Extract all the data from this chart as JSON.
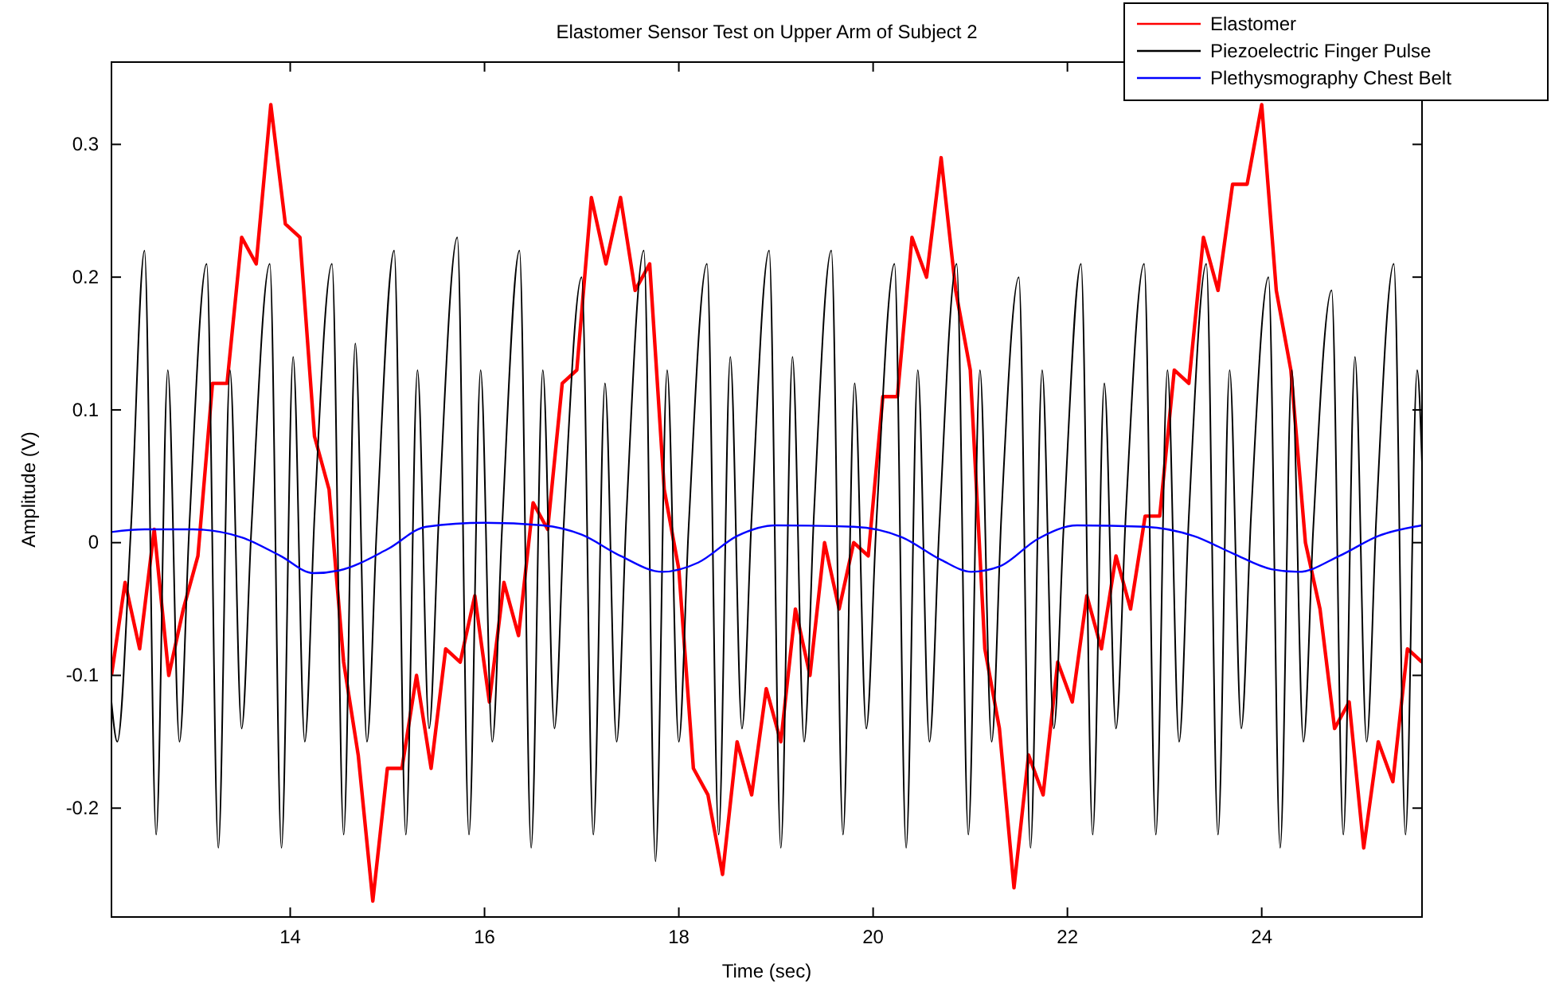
{
  "chart_data": {
    "type": "line",
    "title": "Elastomer Sensor Test on Upper Arm of Subject 2",
    "xlabel": "Time (sec)",
    "ylabel": "Amplitude (V)",
    "xlim": [
      12.16,
      25.65
    ],
    "xticks": [
      14,
      16,
      18,
      20,
      22,
      24
    ],
    "ylim": [
      -0.282,
      0.362
    ],
    "yticks": [
      -0.2,
      -0.1,
      0,
      0.1,
      0.2,
      0.3
    ],
    "grid": false,
    "legend": "top right",
    "marker": "none",
    "line_style": "solid",
    "series": [
      {
        "name": "Elastomer",
        "color": "#ff0000",
        "x": [
          12.16,
          12.3,
          12.45,
          12.6,
          12.75,
          12.9,
          13.05,
          13.2,
          13.35,
          13.5,
          13.65,
          13.8,
          13.95,
          14.1,
          14.25,
          14.4,
          14.55,
          14.7,
          14.85,
          15.0,
          15.15,
          15.3,
          15.45,
          15.6,
          15.75,
          15.9,
          16.05,
          16.2,
          16.35,
          16.5,
          16.65,
          16.8,
          16.95,
          17.1,
          17.25,
          17.4,
          17.55,
          17.7,
          17.85,
          18.0,
          18.15,
          18.3,
          18.45,
          18.6,
          18.75,
          18.9,
          19.05,
          19.2,
          19.35,
          19.5,
          19.65,
          19.8,
          19.95,
          20.1,
          20.25,
          20.4,
          20.55,
          20.7,
          20.85,
          21.0,
          21.15,
          21.3,
          21.45,
          21.6,
          21.75,
          21.9,
          22.05,
          22.2,
          22.35,
          22.5,
          22.65,
          22.8,
          22.95,
          23.1,
          23.25,
          23.4,
          23.55,
          23.7,
          23.85,
          24.0,
          24.15,
          24.3,
          24.45,
          24.6,
          24.75,
          24.9,
          25.05,
          25.2,
          25.35,
          25.5,
          25.65
        ],
        "values": [
          -0.1,
          -0.03,
          -0.08,
          0.01,
          -0.1,
          -0.05,
          -0.01,
          0.12,
          0.12,
          0.23,
          0.21,
          0.33,
          0.24,
          0.23,
          0.08,
          0.04,
          -0.09,
          -0.16,
          -0.27,
          -0.17,
          -0.17,
          -0.1,
          -0.17,
          -0.08,
          -0.09,
          -0.04,
          -0.12,
          -0.03,
          -0.07,
          0.03,
          0.01,
          0.12,
          0.13,
          0.26,
          0.21,
          0.26,
          0.19,
          0.21,
          0.04,
          -0.02,
          -0.17,
          -0.19,
          -0.25,
          -0.15,
          -0.19,
          -0.11,
          -0.15,
          -0.05,
          -0.1,
          0.0,
          -0.05,
          0.0,
          -0.01,
          0.11,
          0.11,
          0.23,
          0.2,
          0.29,
          0.19,
          0.13,
          -0.08,
          -0.14,
          -0.26,
          -0.16,
          -0.19,
          -0.09,
          -0.12,
          -0.04,
          -0.08,
          -0.01,
          -0.05,
          0.02,
          0.02,
          0.13,
          0.12,
          0.23,
          0.19,
          0.27,
          0.27,
          0.33,
          0.19,
          0.13,
          0.0,
          -0.05,
          -0.14,
          -0.12,
          -0.23,
          -0.15,
          -0.18,
          -0.08,
          -0.09
        ]
      },
      {
        "name": "Piezoelectric Finger Pulse",
        "color": "#000000",
        "x": [
          12.16,
          12.22,
          12.36,
          12.5,
          12.62,
          12.74,
          12.86,
          12.96,
          13.14,
          13.26,
          13.38,
          13.5,
          13.6,
          13.79,
          13.91,
          14.03,
          14.15,
          14.25,
          14.43,
          14.55,
          14.67,
          14.79,
          14.89,
          15.07,
          15.19,
          15.31,
          15.43,
          15.53,
          15.72,
          15.84,
          15.96,
          16.08,
          16.18,
          16.36,
          16.48,
          16.6,
          16.72,
          16.82,
          17.0,
          17.12,
          17.24,
          17.36,
          17.46,
          17.64,
          17.76,
          17.88,
          18.0,
          18.1,
          18.29,
          18.41,
          18.53,
          18.65,
          18.75,
          18.93,
          19.05,
          19.17,
          19.29,
          19.39,
          19.57,
          19.69,
          19.81,
          19.93,
          20.03,
          20.22,
          20.34,
          20.46,
          20.58,
          20.68,
          20.86,
          20.98,
          21.1,
          21.22,
          21.32,
          21.5,
          21.62,
          21.74,
          21.86,
          21.96,
          22.14,
          22.26,
          22.38,
          22.5,
          22.6,
          22.79,
          22.91,
          23.03,
          23.15,
          23.25,
          23.43,
          23.55,
          23.67,
          23.79,
          23.89,
          24.07,
          24.19,
          24.31,
          24.43,
          24.53,
          24.72,
          24.84,
          24.96,
          25.08,
          25.18,
          25.36,
          25.48,
          25.6,
          25.65
        ],
        "values": [
          -0.12,
          -0.15,
          0.01,
          0.22,
          -0.22,
          0.13,
          -0.15,
          0.01,
          0.21,
          -0.23,
          0.13,
          -0.14,
          0.01,
          0.21,
          -0.23,
          0.14,
          -0.15,
          0.02,
          0.21,
          -0.22,
          0.15,
          -0.15,
          0.01,
          0.22,
          -0.22,
          0.13,
          -0.14,
          0.02,
          0.23,
          -0.22,
          0.13,
          -0.15,
          0.01,
          0.22,
          -0.23,
          0.13,
          -0.14,
          0.02,
          0.2,
          -0.22,
          0.12,
          -0.15,
          0.02,
          0.22,
          -0.24,
          0.13,
          -0.15,
          0.01,
          0.21,
          -0.22,
          0.14,
          -0.14,
          0.02,
          0.22,
          -0.23,
          0.14,
          -0.15,
          0.02,
          0.22,
          -0.22,
          0.12,
          -0.14,
          0.01,
          0.21,
          -0.23,
          0.13,
          -0.15,
          0.01,
          0.21,
          -0.22,
          0.13,
          -0.15,
          0.02,
          0.2,
          -0.23,
          0.13,
          -0.14,
          0.01,
          0.21,
          -0.22,
          0.12,
          -0.14,
          0.02,
          0.21,
          -0.22,
          0.13,
          -0.15,
          0.02,
          0.21,
          -0.22,
          0.13,
          -0.14,
          0.02,
          0.2,
          -0.23,
          0.13,
          -0.15,
          0.01,
          0.19,
          -0.22,
          0.14,
          -0.15,
          0.02,
          0.21,
          -0.22,
          0.13,
          0.06
        ]
      },
      {
        "name": "Plethysmography Chest Belt",
        "color": "#0000ff",
        "x": [
          12.16,
          12.5,
          13.0,
          13.5,
          13.9,
          14.24,
          14.5,
          15.0,
          15.4,
          16.0,
          16.6,
          17.0,
          17.4,
          17.83,
          18.2,
          18.6,
          19.0,
          19.8,
          20.3,
          20.7,
          21.01,
          21.3,
          21.7,
          22.1,
          22.8,
          23.3,
          23.7,
          24.1,
          24.38,
          24.8,
          25.2,
          25.65
        ],
        "values": [
          0.008,
          0.01,
          0.01,
          0.004,
          -0.01,
          -0.023,
          -0.021,
          -0.005,
          0.012,
          0.015,
          0.013,
          0.006,
          -0.01,
          -0.022,
          -0.015,
          0.005,
          0.013,
          0.012,
          0.004,
          -0.013,
          -0.022,
          -0.018,
          0.003,
          0.013,
          0.012,
          0.005,
          -0.008,
          -0.02,
          -0.022,
          -0.01,
          0.005,
          0.013
        ]
      }
    ]
  }
}
